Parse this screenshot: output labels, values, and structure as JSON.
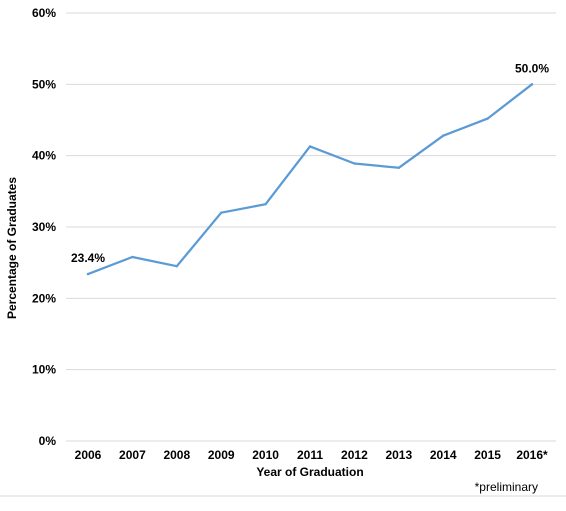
{
  "chart_data": {
    "type": "line",
    "categories": [
      "2006",
      "2007",
      "2008",
      "2009",
      "2010",
      "2011",
      "2012",
      "2013",
      "2014",
      "2015",
      "2016*"
    ],
    "series": [
      {
        "values": [
          23.4,
          25.8,
          24.5,
          32.0,
          33.2,
          41.3,
          38.9,
          38.3,
          42.8,
          45.2,
          50.0
        ],
        "color": "#5b9bd5"
      }
    ],
    "data_labels": [
      {
        "index": 0,
        "text": "23.4%"
      },
      {
        "index": 10,
        "text": "50.0%"
      }
    ],
    "xlabel": "Year of Graduation",
    "ylabel": "Percentage of Graduates",
    "ylim": [
      0,
      60
    ],
    "yticks": [
      0,
      10,
      20,
      30,
      40,
      50,
      60
    ],
    "ytick_labels": [
      "0%",
      "10%",
      "20%",
      "30%",
      "40%",
      "50%",
      "60%"
    ],
    "grid": true,
    "legend": "none",
    "note": "*preliminary"
  }
}
